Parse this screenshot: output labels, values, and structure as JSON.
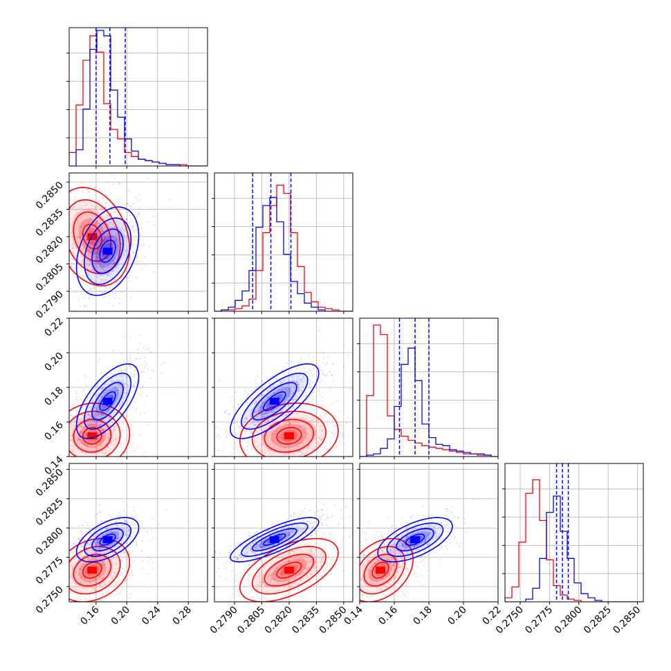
{
  "chart_data": {
    "type": "corner",
    "parameters": [
      {
        "id": "p0",
        "range": [
          0.125,
          0.305
        ],
        "ticks": [
          "0.16",
          "0.20",
          "0.24",
          "0.28"
        ],
        "tick_values": [
          0.16,
          0.2,
          0.24,
          0.28
        ]
      },
      {
        "id": "p1",
        "range": [
          0.2779,
          0.2855
        ],
        "ticks": [
          "0.2790",
          "0.2805",
          "0.2820",
          "0.2835",
          "0.2850"
        ],
        "tick_values": [
          0.279,
          0.2805,
          0.282,
          0.2835,
          0.285
        ]
      },
      {
        "id": "p2",
        "range": [
          0.14,
          0.22
        ],
        "ticks": [
          "0.14",
          "0.16",
          "0.18",
          "0.20",
          "0.22"
        ],
        "tick_values": [
          0.14,
          0.16,
          0.18,
          0.2,
          0.22
        ]
      },
      {
        "id": "p3",
        "range": [
          0.2737,
          0.2855
        ],
        "ticks": [
          "0.2750",
          "0.2775",
          "0.2800",
          "0.2825",
          "0.2850"
        ],
        "tick_values": [
          0.275,
          0.2775,
          0.28,
          0.2825,
          0.285
        ]
      }
    ],
    "series": [
      {
        "color": "#ff0000",
        "means": [
          0.155,
          0.282,
          0.152,
          0.2764
        ],
        "sds": [
          0.018,
          0.001,
          0.007,
          0.001
        ],
        "hist_heights": [
          [
            0.1,
            0.45,
            0.78,
            0.96,
            0.84,
            0.46,
            0.27,
            0.2,
            0.1,
            0.07,
            0.05,
            0.04,
            0.03,
            0.02,
            0.01,
            0.01,
            0.01,
            0.0,
            0.0,
            0.0
          ],
          [
            0.0,
            0.01,
            0.01,
            0.02,
            0.04,
            0.09,
            0.3,
            0.58,
            0.78,
            0.93,
            0.87,
            0.58,
            0.33,
            0.14,
            0.07,
            0.03,
            0.02,
            0.01,
            0.0,
            0.0
          ],
          [
            0.0,
            0.45,
            0.97,
            0.9,
            0.3,
            0.2,
            0.15,
            0.12,
            0.1,
            0.08,
            0.07,
            0.06,
            0.05,
            0.04,
            0.03,
            0.02,
            0.02,
            0.01,
            0.01,
            0.0
          ],
          [
            0.03,
            0.11,
            0.44,
            0.8,
            0.9,
            0.6,
            0.31,
            0.12,
            0.05,
            0.02,
            0.01,
            0.0,
            0.0,
            0.0,
            0.0,
            0.0,
            0.0,
            0.0,
            0.0,
            0.0
          ]
        ]
      },
      {
        "color": "#0000ff",
        "means": [
          0.175,
          0.2812,
          0.172,
          0.279
        ],
        "sds": [
          0.015,
          0.0009,
          0.008,
          0.0007
        ],
        "quantiles": [
          [
            0.16,
            0.178,
            0.198
          ],
          [
            0.28,
            0.281,
            0.2821
          ],
          [
            0.163,
            0.172,
            0.18
          ],
          [
            0.2781,
            0.2786,
            0.2791
          ]
        ],
        "hist_heights": [
          [
            0.0,
            0.12,
            0.42,
            0.86,
            1.0,
            0.96,
            0.56,
            0.36,
            0.2,
            0.11,
            0.05,
            0.04,
            0.03,
            0.02,
            0.01,
            0.01,
            0.0,
            0.0,
            0.0,
            0.0
          ],
          [
            0.0,
            0.01,
            0.03,
            0.08,
            0.15,
            0.3,
            0.62,
            0.78,
            0.84,
            0.66,
            0.42,
            0.22,
            0.13,
            0.06,
            0.03,
            0.01,
            0.0,
            0.0,
            0.0,
            0.0
          ],
          [
            0.0,
            0.01,
            0.02,
            0.06,
            0.13,
            0.37,
            0.68,
            0.8,
            0.56,
            0.24,
            0.14,
            0.09,
            0.08,
            0.05,
            0.04,
            0.03,
            0.02,
            0.02,
            0.01,
            0.0
          ],
          [
            0.0,
            0.0,
            0.0,
            0.02,
            0.1,
            0.32,
            0.66,
            0.78,
            0.52,
            0.32,
            0.14,
            0.06,
            0.03,
            0.01,
            0.0,
            0.0,
            0.0,
            0.0,
            0.0,
            0.0
          ]
        ]
      }
    ],
    "correlations": {
      "#ff0000": {
        "1_0": -0.25,
        "2_0": 0.05,
        "2_1": 0.15,
        "3_0": 0.25,
        "3_1": 0.55,
        "3_2": 0.35
      },
      "#0000ff": {
        "1_0": 0.35,
        "2_0": 0.65,
        "2_1": 0.75,
        "3_0": 0.55,
        "3_1": 0.8,
        "3_2": 0.6
      }
    },
    "contour_levels_sigma": [
      0.5,
      1.0,
      1.5,
      2.0
    ],
    "grid": true
  }
}
